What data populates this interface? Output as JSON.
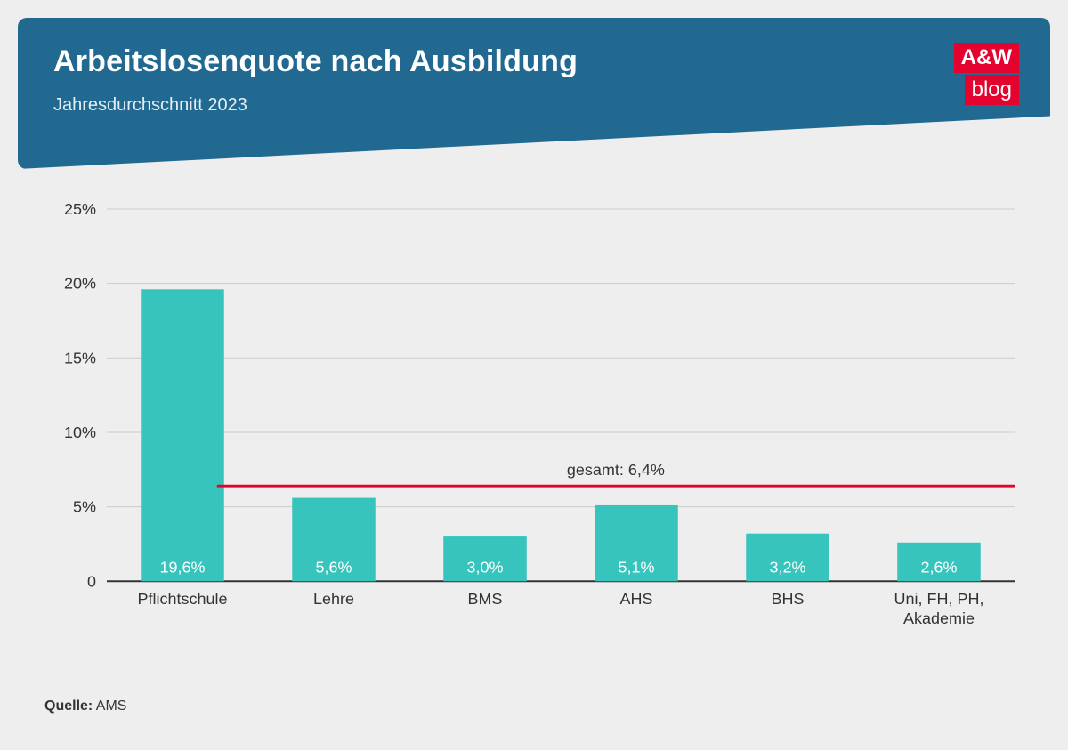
{
  "header": {
    "title": "Arbeitslosenquote nach Ausbildung",
    "subtitle": "Jahresdurchschnitt 2023",
    "bg_color": "#216990",
    "title_color": "#ffffff",
    "title_fontsize": 34,
    "subtitle_fontsize": 20
  },
  "logo": {
    "line1": "A&W",
    "line2": "blog",
    "bg_color": "#e4032e",
    "text_color": "#ffffff"
  },
  "chart": {
    "type": "bar",
    "categories": [
      "Pflichtschule",
      "Lehre",
      "BMS",
      "AHS",
      "BHS",
      "Uni, FH, PH,\nAkademie"
    ],
    "values": [
      19.6,
      5.6,
      3.0,
      5.1,
      3.2,
      2.6
    ],
    "value_labels": [
      "19,6%",
      "5,6%",
      "3,0%",
      "5,1%",
      "3,2%",
      "2,6%"
    ],
    "bar_color": "#36c4bc",
    "bar_label_color": "#ffffff",
    "bar_width": 0.55,
    "ylim": [
      0,
      25
    ],
    "ytick_step": 5,
    "ytick_labels": [
      "0",
      "5%",
      "10%",
      "15%",
      "20%",
      "25%"
    ],
    "axis_color": "#333333",
    "grid_color": "#cccccc",
    "tick_label_color": "#333333",
    "tick_label_fontsize": 18,
    "category_fontsize": 18,
    "value_label_fontsize": 18,
    "reference_line": {
      "value": 6.4,
      "label": "gesamt: 6,4%",
      "color": "#e4032e",
      "width": 3,
      "label_color": "#333333",
      "label_fontsize": 18
    },
    "background_color": "#eeeeee"
  },
  "source": {
    "label": "Quelle:",
    "value": "AMS"
  }
}
